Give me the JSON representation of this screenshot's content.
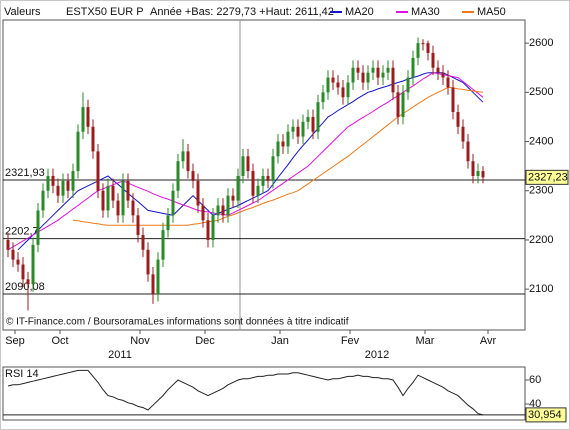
{
  "chart_data": [
    {
      "type": "candlestick",
      "label": "Valeurs",
      "title": "ESTX50 EUR P",
      "subtitle": "Année +Bas: 2279,73 +Haut: 2611,42",
      "note": "© IT-Finance.com / BoursoramaLes informations sont données à titre indicatif",
      "up_color": "#2a8a2a",
      "down_color": "#9a1c1c",
      "open": [
        2200,
        2180,
        2160,
        2150,
        2120,
        2110,
        2190,
        2260,
        2300,
        2330,
        2310,
        2290,
        2320,
        2300,
        2340,
        2420,
        2470,
        2430,
        2380,
        2300,
        2260,
        2310,
        2280,
        2250,
        2320,
        2280,
        2250,
        2210,
        2180,
        2130,
        2090,
        2160,
        2220,
        2250,
        2300,
        2360,
        2380,
        2340,
        2320,
        2270,
        2240,
        2200,
        2250,
        2270,
        2250,
        2290,
        2280,
        2330,
        2370,
        2340,
        2290,
        2310,
        2330,
        2320,
        2370,
        2400,
        2390,
        2420,
        2430,
        2410,
        2440,
        2450,
        2420,
        2480,
        2500,
        2530,
        2520,
        2510,
        2490,
        2520,
        2550,
        2540,
        2520,
        2540,
        2550,
        2530,
        2540,
        2550,
        2500,
        2450,
        2500,
        2530,
        2570,
        2600,
        2600,
        2580,
        2550,
        2540,
        2530,
        2510,
        2460,
        2430,
        2400,
        2360,
        2330,
        2340
      ],
      "high": [
        2215,
        2195,
        2175,
        2165,
        2135,
        2205,
        2275,
        2315,
        2345,
        2345,
        2325,
        2335,
        2335,
        2355,
        2435,
        2500,
        2485,
        2445,
        2395,
        2315,
        2325,
        2325,
        2295,
        2335,
        2335,
        2295,
        2265,
        2225,
        2195,
        2145,
        2175,
        2235,
        2265,
        2315,
        2375,
        2405,
        2395,
        2355,
        2335,
        2285,
        2255,
        2265,
        2285,
        2285,
        2305,
        2305,
        2345,
        2385,
        2385,
        2355,
        2325,
        2345,
        2345,
        2385,
        2415,
        2415,
        2435,
        2445,
        2445,
        2455,
        2465,
        2465,
        2495,
        2515,
        2545,
        2545,
        2535,
        2525,
        2535,
        2565,
        2565,
        2555,
        2555,
        2565,
        2565,
        2555,
        2565,
        2565,
        2515,
        2515,
        2545,
        2585,
        2611.42,
        2608,
        2605,
        2595,
        2565,
        2555,
        2545,
        2525,
        2475,
        2445,
        2415,
        2375,
        2355,
        2350
      ],
      "low": [
        2165,
        2145,
        2135,
        2105,
        2057,
        2095,
        2175,
        2245,
        2285,
        2295,
        2275,
        2275,
        2285,
        2285,
        2325,
        2405,
        2415,
        2365,
        2285,
        2245,
        2245,
        2265,
        2235,
        2235,
        2265,
        2235,
        2195,
        2165,
        2115,
        2070,
        2075,
        2145,
        2205,
        2235,
        2285,
        2345,
        2325,
        2305,
        2255,
        2225,
        2185,
        2185,
        2235,
        2235,
        2235,
        2265,
        2265,
        2315,
        2325,
        2275,
        2275,
        2295,
        2305,
        2305,
        2355,
        2375,
        2375,
        2405,
        2395,
        2395,
        2425,
        2405,
        2405,
        2465,
        2485,
        2505,
        2495,
        2475,
        2475,
        2505,
        2525,
        2505,
        2505,
        2525,
        2515,
        2515,
        2525,
        2485,
        2435,
        2435,
        2485,
        2515,
        2555,
        2585,
        2565,
        2535,
        2525,
        2515,
        2495,
        2445,
        2415,
        2385,
        2345,
        2315,
        2315,
        2315
      ],
      "close": [
        2180,
        2160,
        2150,
        2120,
        2110,
        2190,
        2260,
        2300,
        2330,
        2310,
        2290,
        2320,
        2300,
        2340,
        2420,
        2470,
        2430,
        2380,
        2300,
        2260,
        2310,
        2280,
        2250,
        2320,
        2280,
        2250,
        2210,
        2180,
        2130,
        2090,
        2160,
        2220,
        2250,
        2300,
        2360,
        2380,
        2340,
        2320,
        2270,
        2240,
        2200,
        2250,
        2270,
        2250,
        2290,
        2280,
        2330,
        2370,
        2340,
        2290,
        2310,
        2330,
        2320,
        2370,
        2400,
        2390,
        2420,
        2430,
        2410,
        2440,
        2450,
        2420,
        2480,
        2500,
        2530,
        2520,
        2510,
        2490,
        2520,
        2550,
        2540,
        2520,
        2540,
        2550,
        2530,
        2540,
        2550,
        2500,
        2450,
        2500,
        2530,
        2570,
        2600,
        2600,
        2580,
        2550,
        2540,
        2530,
        2510,
        2460,
        2430,
        2400,
        2360,
        2330,
        2340,
        2327.23
      ],
      "last_close_label": "2327,23",
      "series": [
        {
          "name": "MA20",
          "color": "#1414c8",
          "values": [
            null,
            null,
            2180,
            2190,
            2200,
            2210,
            2220,
            2230,
            2240,
            2250,
            2260,
            2270,
            2280,
            2290,
            2300,
            2305,
            2310,
            2315,
            2320,
            2325,
            2330,
            2321,
            2313,
            2304,
            2295,
            2286,
            2278,
            2269,
            2260,
            2258,
            2256,
            2254,
            2252,
            2250,
            2260,
            2270,
            2280,
            2290,
            2280,
            2270,
            2260,
            2250,
            2254,
            2258,
            2262,
            2266,
            2270,
            2275,
            2280,
            2285,
            2290,
            2295,
            2300,
            2313,
            2327,
            2340,
            2353,
            2367,
            2380,
            2392,
            2403,
            2415,
            2427,
            2438,
            2450,
            2456,
            2463,
            2469,
            2475,
            2481,
            2488,
            2494,
            2500,
            2503,
            2507,
            2510,
            2513,
            2517,
            2520,
            2523,
            2527,
            2530,
            2533,
            2537,
            2540,
            2540,
            2540,
            2540,
            2535,
            2530,
            2525,
            2520,
            2510,
            2500,
            2490,
            2480
          ]
        },
        {
          "name": "MA30",
          "color": "#e010e0",
          "values": [
            2180,
            2186,
            2192,
            2198,
            2204,
            2210,
            2216,
            2222,
            2228,
            2234,
            2240,
            2248,
            2255,
            2263,
            2270,
            2278,
            2285,
            2293,
            2300,
            2304,
            2308,
            2312,
            2316,
            2320,
            2316,
            2311,
            2307,
            2303,
            2299,
            2294,
            2290,
            2286,
            2283,
            2279,
            2275,
            2271,
            2268,
            2264,
            2260,
            2258,
            2257,
            2255,
            2253,
            2252,
            2250,
            2255,
            2260,
            2265,
            2270,
            2275,
            2280,
            2287,
            2294,
            2301,
            2308,
            2315,
            2322,
            2329,
            2336,
            2343,
            2350,
            2360,
            2370,
            2380,
            2390,
            2400,
            2410,
            2420,
            2430,
            2436,
            2443,
            2449,
            2455,
            2461,
            2468,
            2474,
            2480,
            2487,
            2493,
            2500,
            2507,
            2513,
            2520,
            2527,
            2533,
            2540,
            2538,
            2536,
            2534,
            2532,
            2530,
            2522,
            2514,
            2506,
            2498,
            2490
          ]
        },
        {
          "name": "MA50",
          "color": "#f07818",
          "values": [
            null,
            null,
            null,
            null,
            null,
            null,
            null,
            null,
            null,
            null,
            null,
            null,
            null,
            2240,
            2239,
            2237,
            2236,
            2234,
            2233,
            2231,
            2230,
            2230,
            2230,
            2230,
            2230,
            2230,
            2230,
            2230,
            2230,
            2230,
            2230,
            2230,
            2230,
            2230,
            2230,
            2230,
            2230,
            2232,
            2233,
            2235,
            2237,
            2238,
            2240,
            2244,
            2248,
            2251,
            2255,
            2259,
            2263,
            2266,
            2270,
            2274,
            2278,
            2281,
            2285,
            2289,
            2293,
            2296,
            2300,
            2307,
            2314,
            2321,
            2328,
            2335,
            2342,
            2349,
            2356,
            2363,
            2370,
            2378,
            2386,
            2394,
            2402,
            2410,
            2418,
            2426,
            2434,
            2442,
            2450,
            2457,
            2463,
            2470,
            2477,
            2483,
            2490,
            2495,
            2500,
            2505,
            2510,
            2509,
            2507,
            2506,
            2504,
            2503,
            2501,
            2500
          ]
        }
      ],
      "xlim": [
        -1,
        103.4
      ],
      "ylim": [
        2017,
        2647
      ],
      "yticks": [
        2100,
        2200,
        2300,
        2400,
        2500,
        2600
      ],
      "xticks": [
        {
          "value": 1.4,
          "label": "Sep"
        },
        {
          "value": 10.4,
          "label": "Oct"
        },
        {
          "value": 26.4,
          "label": "Nov"
        },
        {
          "value": 39.4,
          "label": "Dec"
        },
        {
          "value": 54.4,
          "label": "Jan"
        },
        {
          "value": 68.4,
          "label": "Fev"
        },
        {
          "value": 83.4,
          "label": "Mar"
        },
        {
          "value": 96,
          "label": "Avr"
        }
      ],
      "year_labels": [
        {
          "value": 22.4,
          "label": "2011"
        },
        {
          "value": 73.8,
          "label": "2012"
        }
      ],
      "levels": [
        {
          "value": 2321.93,
          "label": "2321,93"
        },
        {
          "value": 2202.7,
          "label": "2202,7"
        },
        {
          "value": 2090.08,
          "label": "2090,08"
        }
      ],
      "legend": "top"
    },
    {
      "type": "line",
      "title": "RSI 14",
      "color": "#222222",
      "values": [
        55,
        56,
        56,
        57,
        58,
        59,
        60,
        61,
        62,
        63,
        64,
        65,
        66,
        67,
        68,
        68,
        68,
        63,
        58,
        52,
        47,
        46,
        44,
        43,
        41,
        40,
        38,
        37,
        35,
        39,
        43,
        47,
        52,
        56,
        60,
        58,
        56,
        54,
        51,
        49,
        47,
        49,
        51,
        53,
        56,
        58,
        60,
        61,
        61,
        62,
        63,
        63,
        64,
        64,
        65,
        65,
        65,
        66,
        66,
        65,
        64,
        63,
        62,
        61,
        60,
        61,
        61,
        62,
        63,
        63,
        64,
        63,
        63,
        62,
        62,
        61,
        61,
        60,
        54,
        47,
        53,
        58,
        64,
        62,
        60,
        58,
        56,
        54,
        51,
        49,
        47,
        43,
        39,
        36,
        32,
        30.954
      ],
      "last_value_label": "30,954",
      "xlim": [
        -1,
        103.4
      ],
      "ylim": [
        26.7,
        70.8
      ],
      "yticks": [
        40,
        60
      ]
    }
  ]
}
